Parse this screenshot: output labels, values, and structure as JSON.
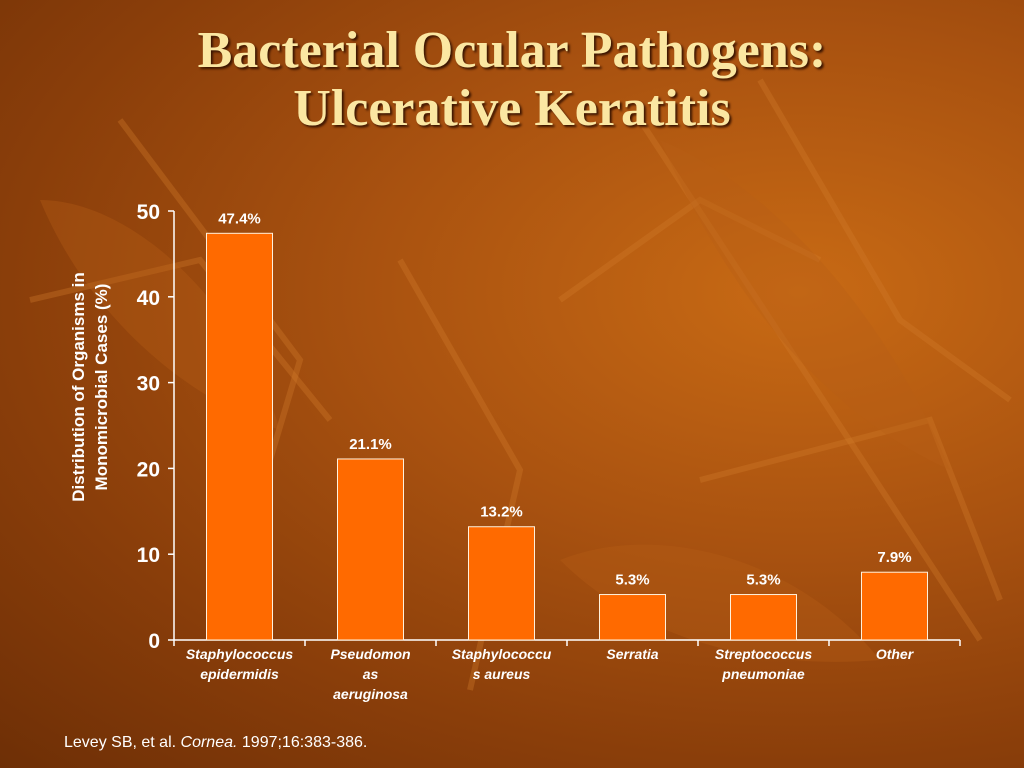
{
  "slide": {
    "title_line1": "Bacterial Ocular Pathogens:",
    "title_line2": "Ulcerative Keratitis",
    "citation_prefix": "Levey SB, et al.",
    "citation_journal": "Cornea.",
    "citation_suffix": "1997;16:383-386."
  },
  "colors": {
    "bar": "#ff6a00",
    "bar_stroke": "#fff1dc",
    "axis": "#ffffff",
    "text": "#ffffff",
    "title": "#fbe7a2"
  },
  "chart_data": {
    "type": "bar",
    "title": "",
    "xlabel": "",
    "ylabel_line1": "Distribution of Organisms in",
    "ylabel_line2": "Monomicrobial Cases (%)",
    "ylim": [
      0,
      50
    ],
    "yticks": [
      "0",
      "10",
      "20",
      "30",
      "40",
      "50"
    ],
    "categories": [
      [
        "Staphylococcus",
        "epidermidis"
      ],
      [
        "Pseudomon",
        "as",
        "aeruginosa"
      ],
      [
        "Staphylococcu",
        "s aureus"
      ],
      [
        "Serratia"
      ],
      [
        "Streptococcus",
        "pneumoniae"
      ],
      [
        "Other"
      ]
    ],
    "values": [
      47.4,
      21.1,
      13.2,
      5.3,
      5.3,
      7.9
    ],
    "data_labels": [
      "47.4%",
      "21.1%",
      "13.2%",
      "5.3%",
      "5.3%",
      "7.9%"
    ],
    "grid": false,
    "legend": "none"
  }
}
